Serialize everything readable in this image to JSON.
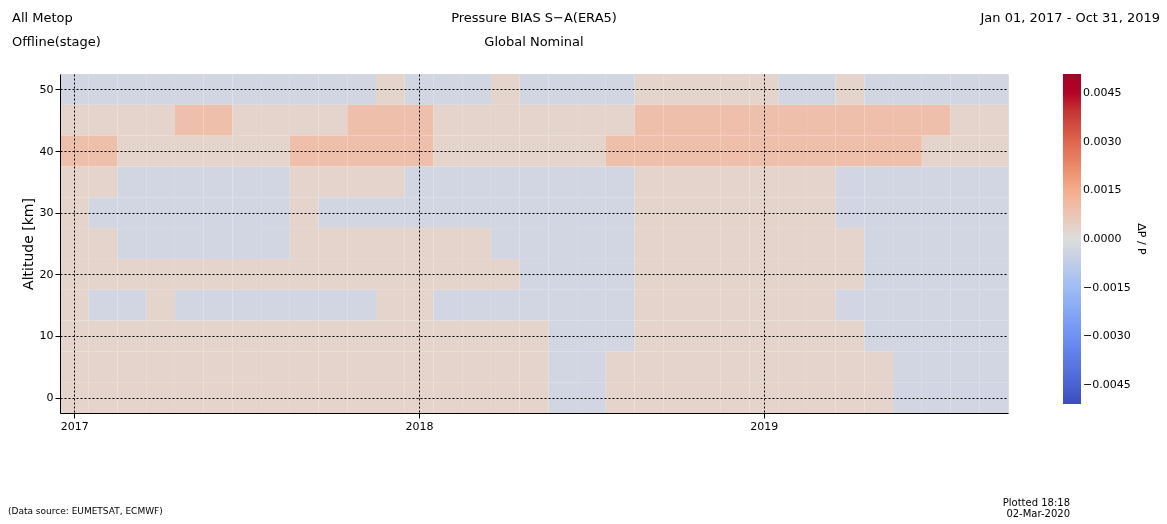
{
  "chart_data": {
    "type": "heatmap",
    "title": "Pressure   BIAS S−A(ERA5)",
    "subtitle": "Global   Nominal",
    "annotations": [
      "All Metop",
      "Offline(stage)",
      "Jan 01, 2017 - Oct 31, 2019",
      "Plotted 18:18",
      "02-Mar-2020",
      "(Data source: EUMETSAT, ECMWF)"
    ],
    "ylabel": "Altitude [km]",
    "clabel": "ΔP / P",
    "categories": [
      "2017",
      null,
      null,
      null,
      null,
      null,
      null,
      null,
      null,
      null,
      null,
      null,
      "2018",
      null,
      null,
      null,
      null,
      null,
      null,
      null,
      null,
      null,
      null,
      null,
      "2019",
      null,
      null,
      null,
      null,
      null,
      null,
      null,
      null
    ],
    "y_categories": [
      "50",
      null,
      "40",
      null,
      "30",
      null,
      "20",
      null,
      "10",
      null,
      "0"
    ],
    "grid": true,
    "clim": [
      -0.0051,
      0.0051
    ],
    "cticks": [
      {
        "value": -0.0045,
        "label": "−0.0045"
      },
      {
        "value": -0.003,
        "label": "−0.0030"
      },
      {
        "value": -0.0015,
        "label": "−0.0015"
      },
      {
        "value": 0.0,
        "label": "0.0000"
      },
      {
        "value": 0.0015,
        "label": "0.0015"
      },
      {
        "value": 0.003,
        "label": "0.0030"
      },
      {
        "value": 0.0045,
        "label": "0.0045"
      }
    ],
    "cells": [
      [
        -0.0003,
        -0.0003,
        -0.0003,
        -0.0003,
        -0.0003,
        -0.0003,
        -0.0003,
        -0.0003,
        -0.0003,
        -0.0003,
        -0.0003,
        0.0003,
        -0.0003,
        -0.0003,
        -0.0003,
        0.0003,
        -0.0003,
        -0.0003,
        -0.0003,
        -0.0003,
        0.0003,
        0.0003,
        0.0003,
        0.0003,
        0.0003,
        -0.0003,
        -0.0003,
        0.0003,
        -0.0003,
        -0.0003,
        -0.0003,
        -0.0003,
        -0.0003
      ],
      [
        0.0003,
        0.0003,
        0.0003,
        0.0003,
        0.0009,
        0.0009,
        0.0003,
        0.0003,
        0.0003,
        0.0003,
        0.0009,
        0.0009,
        0.0009,
        0.0003,
        0.0003,
        0.0003,
        0.0003,
        0.0003,
        0.0003,
        0.0003,
        0.0009,
        0.0009,
        0.0009,
        0.0009,
        0.0009,
        0.0009,
        0.0009,
        0.0009,
        0.0009,
        0.0009,
        0.0009,
        0.0003,
        0.0003
      ],
      [
        0.0009,
        0.0009,
        0.0003,
        0.0003,
        0.0003,
        0.0003,
        0.0003,
        0.0003,
        0.0009,
        0.0009,
        0.0009,
        0.0009,
        0.0009,
        0.0003,
        0.0003,
        0.0003,
        0.0003,
        0.0003,
        0.0003,
        0.0009,
        0.0009,
        0.0009,
        0.0009,
        0.0009,
        0.0009,
        0.0009,
        0.0009,
        0.0009,
        0.0009,
        0.0009,
        0.0003,
        0.0003,
        0.0003
      ],
      [
        0.0003,
        0.0003,
        -0.0003,
        -0.0003,
        -0.0003,
        -0.0003,
        -0.0003,
        -0.0003,
        0.0003,
        0.0003,
        0.0003,
        0.0003,
        -0.0003,
        -0.0003,
        -0.0003,
        -0.0003,
        -0.0003,
        -0.0003,
        -0.0003,
        -0.0003,
        0.0003,
        0.0003,
        0.0003,
        0.0003,
        0.0003,
        0.0003,
        0.0003,
        -0.0003,
        -0.0003,
        -0.0003,
        -0.0003,
        -0.0003,
        -0.0003
      ],
      [
        0.0003,
        -0.0003,
        -0.0003,
        -0.0003,
        -0.0003,
        -0.0003,
        -0.0003,
        -0.0003,
        0.0003,
        -0.0003,
        -0.0003,
        -0.0003,
        -0.0003,
        -0.0003,
        -0.0003,
        -0.0003,
        -0.0003,
        -0.0003,
        -0.0003,
        -0.0003,
        0.0003,
        0.0003,
        0.0003,
        0.0003,
        0.0003,
        0.0003,
        0.0003,
        -0.0003,
        -0.0003,
        -0.0003,
        -0.0003,
        -0.0003,
        -0.0003
      ],
      [
        0.0003,
        0.0003,
        -0.0003,
        -0.0003,
        -0.0003,
        -0.0003,
        -0.0003,
        -0.0003,
        0.0003,
        0.0003,
        0.0003,
        0.0003,
        0.0003,
        0.0003,
        0.0003,
        -0.0003,
        -0.0003,
        -0.0003,
        -0.0003,
        -0.0003,
        0.0003,
        0.0003,
        0.0003,
        0.0003,
        0.0003,
        0.0003,
        0.0003,
        0.0003,
        -0.0003,
        -0.0003,
        -0.0003,
        -0.0003,
        -0.0003
      ],
      [
        0.0003,
        0.0003,
        0.0003,
        0.0003,
        0.0003,
        0.0003,
        0.0003,
        0.0003,
        0.0003,
        0.0003,
        0.0003,
        0.0003,
        0.0003,
        0.0003,
        0.0003,
        0.0003,
        -0.0003,
        -0.0003,
        -0.0003,
        -0.0003,
        0.0003,
        0.0003,
        0.0003,
        0.0003,
        0.0003,
        0.0003,
        0.0003,
        0.0003,
        -0.0003,
        -0.0003,
        -0.0003,
        -0.0003,
        -0.0003
      ],
      [
        0.0003,
        -0.0003,
        -0.0003,
        0.0003,
        -0.0003,
        -0.0003,
        -0.0003,
        -0.0003,
        -0.0003,
        -0.0003,
        -0.0003,
        0.0003,
        0.0003,
        -0.0003,
        -0.0003,
        -0.0003,
        -0.0003,
        -0.0003,
        -0.0003,
        -0.0003,
        0.0003,
        0.0003,
        0.0003,
        0.0003,
        0.0003,
        0.0003,
        0.0003,
        -0.0003,
        -0.0003,
        -0.0003,
        -0.0003,
        -0.0003,
        -0.0003
      ],
      [
        0.0003,
        0.0003,
        0.0003,
        0.0003,
        0.0003,
        0.0003,
        0.0003,
        0.0003,
        0.0003,
        0.0003,
        0.0003,
        0.0003,
        0.0003,
        0.0003,
        0.0003,
        0.0003,
        0.0003,
        -0.0003,
        -0.0003,
        -0.0003,
        0.0003,
        0.0003,
        0.0003,
        0.0003,
        0.0003,
        0.0003,
        0.0003,
        0.0003,
        -0.0003,
        -0.0003,
        -0.0003,
        -0.0003,
        -0.0003
      ],
      [
        0.0003,
        0.0003,
        0.0003,
        0.0003,
        0.0003,
        0.0003,
        0.0003,
        0.0003,
        0.0003,
        0.0003,
        0.0003,
        0.0003,
        0.0003,
        0.0003,
        0.0003,
        0.0003,
        0.0003,
        -0.0003,
        -0.0003,
        0.0003,
        0.0003,
        0.0003,
        0.0003,
        0.0003,
        0.0003,
        0.0003,
        0.0003,
        0.0003,
        0.0003,
        -0.0003,
        -0.0003,
        -0.0003,
        -0.0003
      ],
      [
        0.0003,
        0.0003,
        0.0003,
        0.0003,
        0.0003,
        0.0003,
        0.0003,
        0.0003,
        0.0003,
        0.0003,
        0.0003,
        0.0003,
        0.0003,
        0.0003,
        0.0003,
        0.0003,
        0.0003,
        -0.0003,
        -0.0003,
        0.0003,
        0.0003,
        0.0003,
        0.0003,
        0.0003,
        0.0003,
        0.0003,
        0.0003,
        0.0003,
        0.0003,
        -0.0003,
        -0.0003,
        -0.0003,
        -0.0003
      ]
    ]
  }
}
